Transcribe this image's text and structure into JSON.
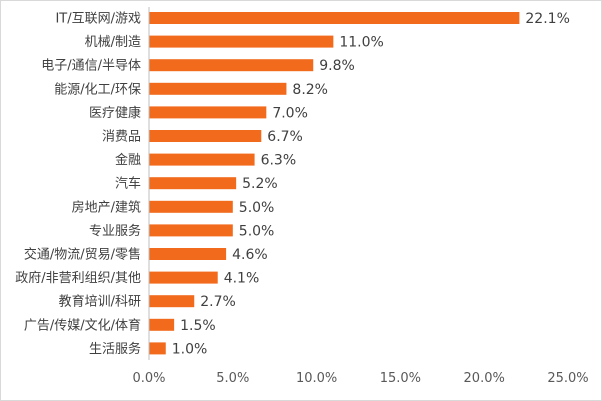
{
  "chart_data": {
    "type": "bar",
    "orientation": "horizontal",
    "categories": [
      "IT/互联网/游戏",
      "机械/制造",
      "电子/通信/半导体",
      "能源/化工/环保",
      "医疗健康",
      "消费品",
      "金融",
      "汽车",
      "房地产/建筑",
      "专业服务",
      "交通/物流/贸易/零售",
      "政府/非营利组织/其他",
      "教育培训/科研",
      "广告/传媒/文化/体育",
      "生活服务"
    ],
    "values": [
      22.1,
      11.0,
      9.8,
      8.2,
      7.0,
      6.7,
      6.3,
      5.2,
      5.0,
      5.0,
      4.6,
      4.1,
      2.7,
      1.5,
      1.0
    ],
    "value_labels": [
      "22.1%",
      "11.0%",
      "9.8%",
      "8.2%",
      "7.0%",
      "6.7%",
      "6.3%",
      "5.2%",
      "5.0%",
      "5.0%",
      "4.6%",
      "4.1%",
      "2.7%",
      "1.5%",
      "1.0%"
    ],
    "xlim": [
      0,
      25
    ],
    "x_ticks": [
      "0.0%",
      "5.0%",
      "10.0%",
      "15.0%",
      "20.0%",
      "25.0%"
    ],
    "title": "",
    "xlabel": "",
    "ylabel": "",
    "grid": false,
    "legend": "none",
    "bar_color": "#f26b1d",
    "axis_color": "#bfbfbf",
    "text_color": "#404040"
  }
}
